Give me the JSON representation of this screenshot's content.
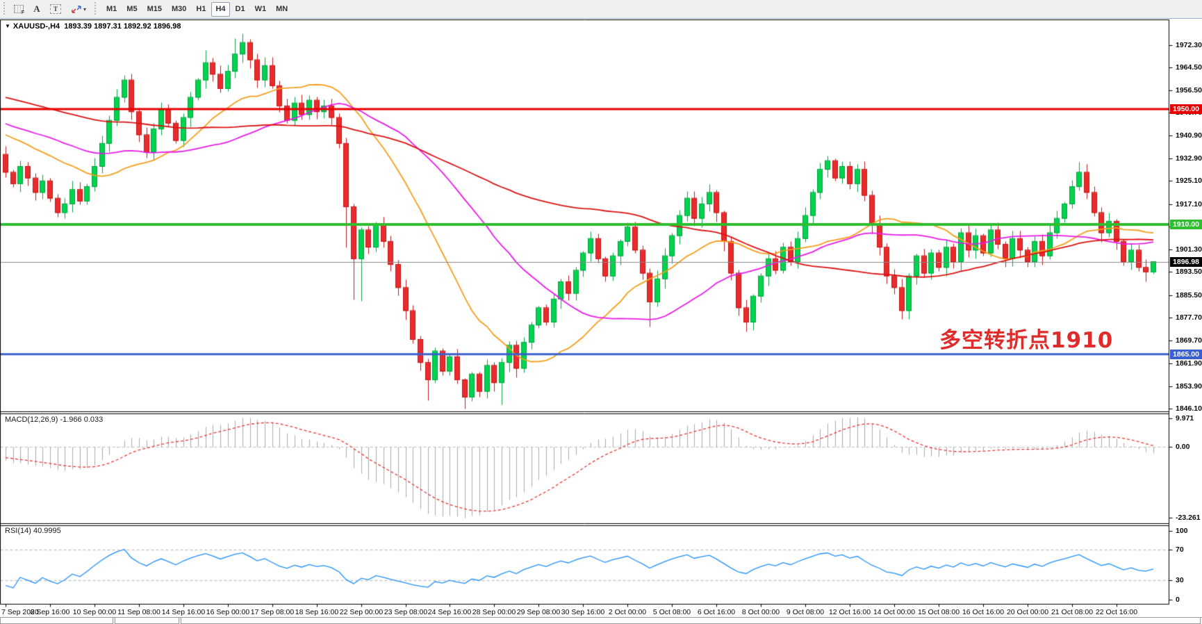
{
  "toolbar": {
    "icons": {
      "grid_f": "F",
      "text_a": "A",
      "text_box": "T",
      "caret": "▾"
    },
    "timeframes": [
      "M1",
      "M5",
      "M15",
      "M30",
      "H1",
      "H4",
      "D1",
      "W1",
      "MN"
    ],
    "active_timeframe": "H4"
  },
  "chart_header": {
    "marker": "▼",
    "symbol": "XAUUSD-,H4",
    "ohlc": "1893.39 1897.31 1892.92 1896.98"
  },
  "annotation": {
    "text": "多空转折点1910",
    "color": "#e02b2b"
  },
  "price_axis": {
    "ticks": [
      "1972.30",
      "1964.50",
      "1956.50",
      "1948.70",
      "1940.90",
      "1932.90",
      "1925.10",
      "1917.10",
      "1909.30",
      "1901.30",
      "1893.50",
      "1885.50",
      "1877.70",
      "1869.70",
      "1861.90",
      "1853.90",
      "1846.10"
    ]
  },
  "hlines": [
    {
      "price": 1950.0,
      "label": "1950.00",
      "color": "#e60000",
      "width": 3
    },
    {
      "price": 1910.0,
      "label": "1910.00",
      "color": "#2fbe2f",
      "width": 4
    },
    {
      "price": 1865.0,
      "label": "1865.00",
      "color": "#3a5fd0",
      "width": 3
    }
  ],
  "current_price": {
    "value": 1896.98,
    "label": "1896.98",
    "line_color": "#8a8a8a",
    "badge_bg": "#000000"
  },
  "macd_panel": {
    "label": "MACD(12,26,9) -1.966 0.033",
    "axis_ticks": [
      {
        "value": 9.971,
        "label": "9.971"
      },
      {
        "value": 0,
        "label": "0.00"
      },
      {
        "value": -23.261,
        "label": "-23.261"
      }
    ]
  },
  "rsi_panel": {
    "label": "RSI(14) 40.9995",
    "axis_ticks": [
      {
        "value": 100,
        "label": "100"
      },
      {
        "value": 70,
        "label": "70"
      },
      {
        "value": 30,
        "label": "30"
      },
      {
        "value": 0,
        "label": "0"
      }
    ],
    "levels": [
      70,
      30
    ]
  },
  "date_axis": {
    "labels": [
      "7 Sep 2020",
      "8 Sep 16:00",
      "10 Sep 00:00",
      "11 Sep 08:00",
      "14 Sep 16:00",
      "16 Sep 00:00",
      "17 Sep 08:00",
      "18 Sep 16:00",
      "22 Sep 00:00",
      "23 Sep 08:00",
      "24 Sep 16:00",
      "28 Sep 00:00",
      "29 Sep 08:00",
      "30 Sep 16:00",
      "2 Oct 00:00",
      "5 Oct 08:00",
      "6 Oct 16:00",
      "8 Oct 00:00",
      "9 Oct 08:00",
      "12 Oct 16:00",
      "14 Oct 00:00",
      "15 Oct 08:00",
      "16 Oct 16:00",
      "20 Oct 00:00",
      "21 Oct 08:00",
      "22 Oct 16:00"
    ]
  },
  "status_bar": {
    "cells": [
      "",
      "",
      ""
    ]
  },
  "chart_data": {
    "type": "candlestick",
    "symbol": "XAUUSD-",
    "timeframe": "H4",
    "title": "XAUUSD-,H4 1893.39 1897.31 1892.92 1896.98",
    "ylim": [
      1845.4,
      1981.1
    ],
    "bars_per_date_label": 6,
    "closes": [
      1928,
      1924,
      1930,
      1926,
      1921,
      1925,
      1919,
      1914,
      1917,
      1922,
      1918,
      1923,
      1930,
      1938,
      1946,
      1954,
      1960,
      1949,
      1941,
      1935,
      1943,
      1950,
      1945,
      1939,
      1947,
      1954,
      1960,
      1966,
      1962,
      1957,
      1963,
      1969,
      1973,
      1967,
      1960,
      1965,
      1958,
      1951,
      1946,
      1952,
      1948,
      1953,
      1949,
      1951,
      1947,
      1938,
      1916,
      1898,
      1908,
      1902,
      1910,
      1904,
      1896,
      1888,
      1880,
      1870,
      1862,
      1856,
      1866,
      1859,
      1864,
      1856,
      1850,
      1858,
      1852,
      1861,
      1855,
      1862,
      1868,
      1860,
      1869,
      1875,
      1881,
      1876,
      1884,
      1890,
      1886,
      1894,
      1900,
      1905,
      1898,
      1892,
      1899,
      1904,
      1909,
      1901,
      1893,
      1883,
      1891,
      1899,
      1906,
      1913,
      1919,
      1912,
      1917,
      1921,
      1914,
      1904,
      1893,
      1881,
      1876,
      1885,
      1892,
      1898,
      1894,
      1902,
      1897,
      1905,
      1913,
      1921,
      1929,
      1932,
      1926,
      1930,
      1924,
      1929,
      1920,
      1910,
      1902,
      1892,
      1888,
      1880,
      1892,
      1899,
      1893,
      1900,
      1895,
      1902,
      1897,
      1907,
      1901,
      1906,
      1900,
      1908,
      1903,
      1898,
      1905,
      1901,
      1897,
      1904,
      1899,
      1907,
      1912,
      1917,
      1923,
      1928,
      1921,
      1914,
      1907,
      1911,
      1904,
      1897,
      1901,
      1895,
      1893.4,
      1896.98
    ],
    "wick_overrides": {
      "27": {
        "h": 1970.5
      },
      "31": {
        "h": 1974.5
      },
      "32": {
        "h": 1976.2
      },
      "46": {
        "l": 1902
      },
      "47": {
        "l": 1884
      },
      "48": {
        "l": 1883.5
      },
      "57": {
        "l": 1849
      },
      "62": {
        "l": 1846.1
      },
      "67": {
        "l": 1847.5
      },
      "87": {
        "l": 1874.5
      },
      "100": {
        "l": 1872.8
      },
      "111": {
        "h": 1933.9
      },
      "121": {
        "l": 1877.2
      },
      "145": {
        "h": 1931.6
      },
      "155": {
        "o": 1893.39,
        "h": 1897.31,
        "l": 1892.92,
        "c": 1896.98
      }
    },
    "ma_prehistory": {
      "bars": 80,
      "start": 1975,
      "end": 1938
    },
    "moving_averages": [
      {
        "period": 18,
        "color": "#f59e1b",
        "name": "ma-fast-orange"
      },
      {
        "period": 34,
        "color": "#ea1bea",
        "name": "ma-mid-magenta"
      },
      {
        "period": 72,
        "color": "#dd1111",
        "name": "ma-slow-red"
      }
    ],
    "macd": {
      "fast": 12,
      "slow": 26,
      "signal": 9,
      "ylim": [
        -24.5,
        10.8
      ],
      "labeled_max": 9.971,
      "labeled_min": -23.261,
      "current": -1.966,
      "signal_current": 0.033,
      "hist_color": "#a8a8a8",
      "signal_color": "#ee3333"
    },
    "rsi": {
      "period": 14,
      "current": 40.9995,
      "ylim": [
        0,
        100
      ],
      "levels": [
        30,
        70
      ],
      "line_color": "#1f8fff"
    },
    "up_color": "#00d34e",
    "up_border": "#00a33c",
    "down_color": "#ea2b2b",
    "down_border": "#c51414"
  }
}
